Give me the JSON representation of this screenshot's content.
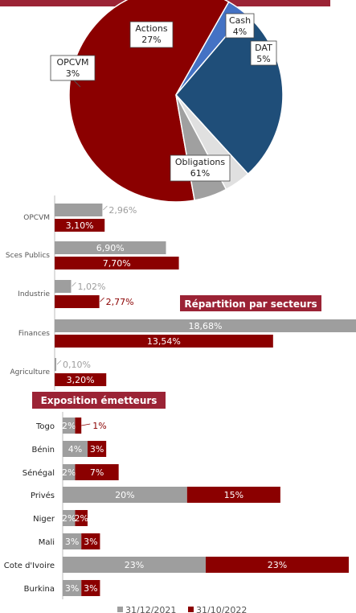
{
  "colors": {
    "gray": "#9e9e9e",
    "red": "#8b0000",
    "navy": "#1f4e79",
    "blue": "#4472c4",
    "light": "#e0e0e0",
    "dark_gray": "#a0a0a0",
    "header": "#9b2335"
  },
  "chart_data": [
    {
      "type": "pie",
      "slices": [
        {
          "label": "Obligations",
          "value": 61,
          "display": "61%"
        },
        {
          "label": "OPCVM",
          "value": 3,
          "display": "3%"
        },
        {
          "label": "Actions",
          "value": 27,
          "display": "27%"
        },
        {
          "label": "Cash",
          "value": 4,
          "display": "4%"
        },
        {
          "label": "DAT",
          "value": 5,
          "display": "5%"
        }
      ]
    },
    {
      "type": "bar",
      "orientation": "horizontal",
      "title": "Répartition par secteurs",
      "categories": [
        "OPCVM",
        "Sces Publics",
        "Industrie",
        "Finances",
        "Agriculture"
      ],
      "series": [
        {
          "values": [
            2.96,
            6.9,
            1.02,
            18.68,
            0.1
          ],
          "labels": [
            "2,96%",
            "6,90%",
            "1,02%",
            "18,68%",
            "0,10%"
          ]
        },
        {
          "values": [
            3.1,
            7.7,
            2.77,
            13.54,
            3.2
          ],
          "labels": [
            "3,10%",
            "7,70%",
            "2,77%",
            "13,54%",
            "3,20%"
          ]
        }
      ]
    },
    {
      "type": "bar",
      "orientation": "horizontal",
      "stacked": true,
      "title": "Exposition émetteurs",
      "categories": [
        "Togo",
        "Bénin",
        "Sénégal",
        "Privés",
        "Niger",
        "Mali",
        "Cote d'Ivoire",
        "Burkina"
      ],
      "series": [
        {
          "name": "31/12/2021",
          "values": [
            2,
            4,
            2,
            20,
            2,
            3,
            23,
            3
          ],
          "labels": [
            "2%",
            "4%",
            "2%",
            "20%",
            "2%",
            "3%",
            "23%",
            "3%"
          ]
        },
        {
          "name": "31/10/2022",
          "values": [
            1,
            3,
            7,
            15,
            2,
            3,
            23,
            3
          ],
          "labels": [
            "1%",
            "3%",
            "7%",
            "15%",
            "2%",
            "3%",
            "23%",
            "3%"
          ]
        }
      ],
      "legend": "bottom"
    }
  ]
}
